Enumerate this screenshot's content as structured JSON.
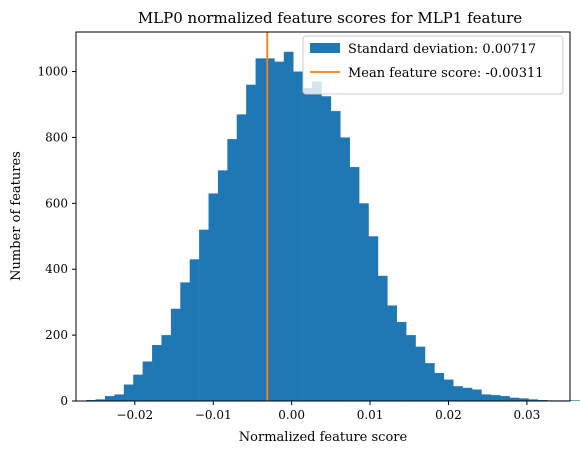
{
  "chart_data": {
    "type": "histogram",
    "title": "MLP0 normalized feature scores for MLP1 feature",
    "xlabel": "Normalized feature score",
    "ylabel": "Number of features",
    "xlim": [
      -0.0275,
      0.0355
    ],
    "ylim": [
      0,
      1120
    ],
    "xticks": [
      -0.02,
      -0.01,
      0.0,
      0.01,
      0.02,
      0.03
    ],
    "xtick_labels": [
      "−0.02",
      "−0.01",
      "0.00",
      "0.01",
      "0.02",
      "0.03"
    ],
    "yticks": [
      0,
      200,
      400,
      600,
      800,
      1000
    ],
    "ytick_labels": [
      "0",
      "200",
      "400",
      "600",
      "800",
      "1000"
    ],
    "grid": false,
    "legend_position": "upper-right",
    "series": [
      {
        "name": "Standard deviation: 0.00717",
        "kind": "bars",
        "color": "#1f77b4",
        "bin_start": -0.0262,
        "bin_width": 0.0012,
        "counts": [
          3,
          5,
          15,
          20,
          50,
          80,
          120,
          170,
          200,
          280,
          360,
          430,
          520,
          630,
          700,
          795,
          870,
          960,
          1040,
          1040,
          1030,
          1060,
          1000,
          950,
          970,
          925,
          880,
          800,
          710,
          600,
          500,
          380,
          290,
          240,
          200,
          165,
          115,
          85,
          65,
          45,
          40,
          35,
          20,
          18,
          15,
          10,
          8,
          5,
          3,
          2,
          2,
          2,
          2,
          2
        ]
      },
      {
        "name": "Mean feature score: -0.00311",
        "kind": "vline",
        "color": "#ff7f0e",
        "x": -0.00311
      }
    ]
  }
}
